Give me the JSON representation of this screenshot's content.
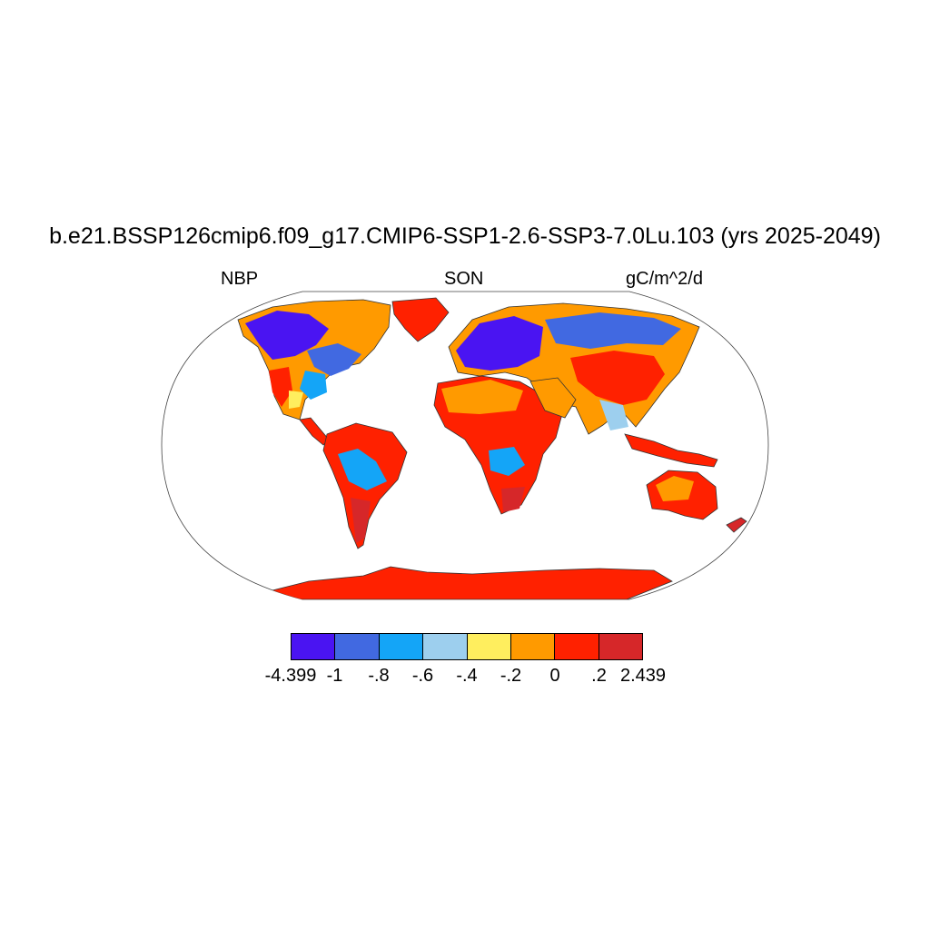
{
  "header": {
    "title": "b.e21.BSSP126cmip6.f09_g17.CMIP6-SSP1-2.6-SSP3-7.0Lu.103 (yrs 2025-2049)",
    "left_label": "NBP",
    "center_label": "SON",
    "right_label": "gC/m^2/d"
  },
  "colorbar": {
    "colors": [
      "#4a14f2",
      "#4169e1",
      "#14a5f7",
      "#9dcfee",
      "#ffee5e",
      "#ff9a00",
      "#ff2100",
      "#d62729"
    ],
    "labels": [
      "-4.399",
      "-1",
      "-.8",
      "-.6",
      "-.4",
      "-.2",
      "0",
      ".2",
      "2.439"
    ]
  }
}
